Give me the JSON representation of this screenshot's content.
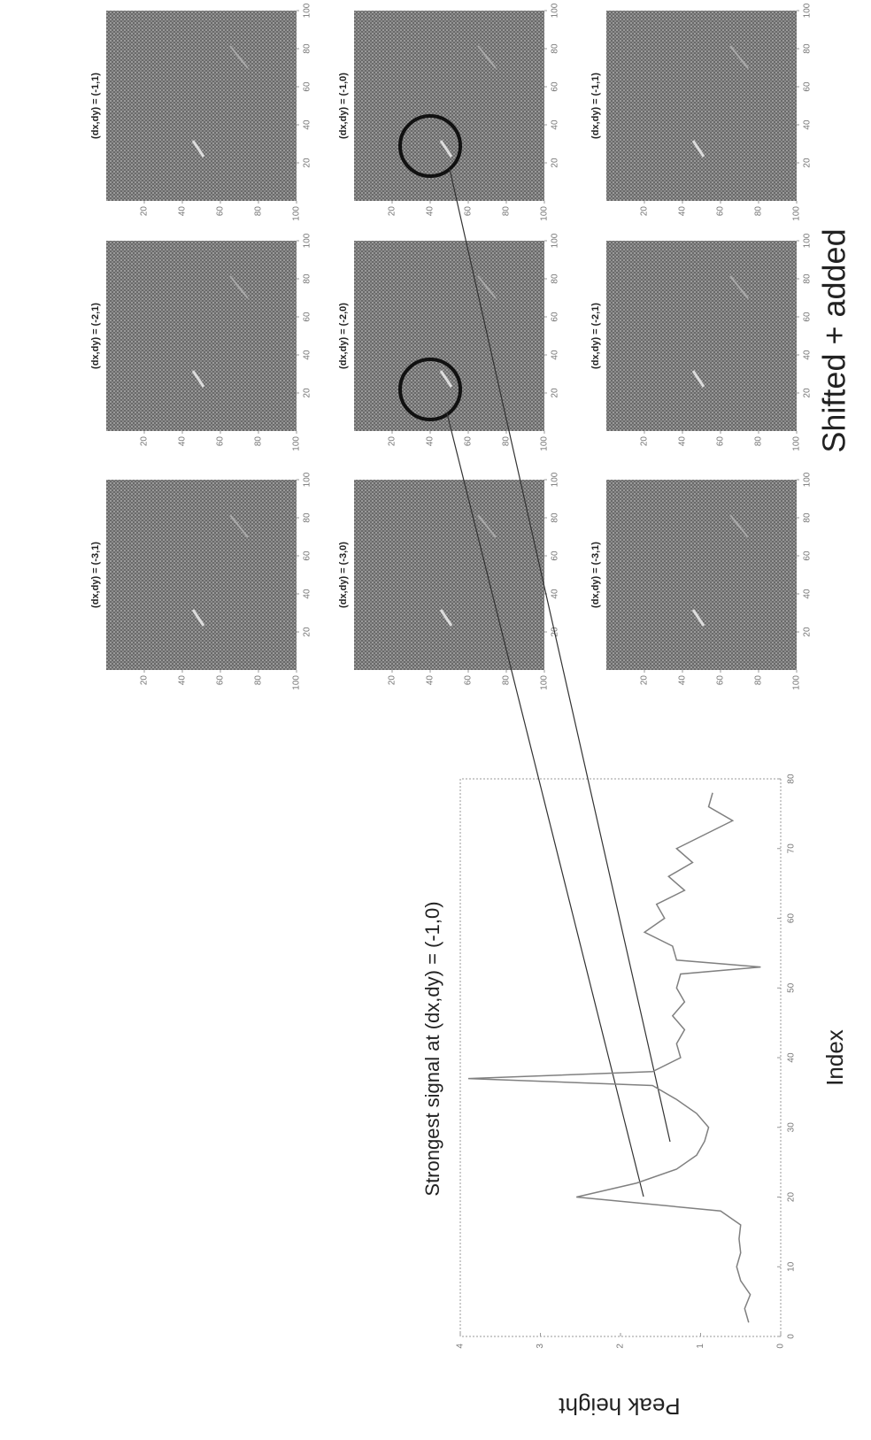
{
  "chart_data": [
    {
      "type": "line",
      "title": "Strongest signal at (dx,dy) = (-1,0)",
      "x_label": "Index",
      "y_label": "Peak height",
      "x": [
        2,
        4,
        6,
        8,
        10,
        12,
        14,
        16,
        18,
        20,
        22,
        24,
        26,
        28,
        30,
        32,
        34,
        36,
        37,
        38,
        40,
        42,
        44,
        46,
        48,
        50,
        52,
        53,
        54,
        56,
        58,
        60,
        62,
        64,
        66,
        68,
        70,
        72,
        74,
        76,
        78
      ],
      "series": [
        {
          "color": "#808080",
          "values": [
            0.4,
            0.45,
            0.38,
            0.5,
            0.55,
            0.5,
            0.52,
            0.5,
            0.75,
            2.55,
            1.8,
            1.3,
            1.05,
            0.95,
            0.9,
            1.05,
            1.3,
            1.6,
            3.9,
            1.6,
            1.25,
            1.3,
            1.2,
            1.35,
            1.2,
            1.3,
            1.25,
            0.25,
            1.3,
            1.35,
            1.7,
            1.45,
            1.55,
            1.2,
            1.4,
            1.1,
            1.3,
            0.95,
            0.6,
            0.9,
            0.85
          ]
        }
      ],
      "xlim": [
        0,
        80
      ],
      "xticks": [
        0,
        10,
        20,
        30,
        40,
        50,
        60,
        70,
        80
      ],
      "ylim": [
        0,
        4
      ],
      "yticks": [
        0,
        1,
        2,
        3,
        4
      ],
      "grid": false
    },
    {
      "type": "image_grid",
      "title": "Shifted + added",
      "panels": [
        {
          "title": "(dx,dy) = (-3,1)"
        },
        {
          "title": "(dx,dy) = (-2,1)"
        },
        {
          "title": "(dx,dy) = (-1,1)"
        },
        {
          "title": "(dx,dy) = (-3,0)"
        },
        {
          "title": "(dx,dy) = (-2,0)"
        },
        {
          "title": "(dx,dy) = (-1,0)"
        },
        {
          "title": "(dx,dy) = (-3,1)"
        },
        {
          "title": "(dx,dy) = (-2,1)"
        },
        {
          "title": "(dx,dy) = (-1,1)"
        }
      ],
      "xlim": [
        0,
        100
      ],
      "xticks": [
        20,
        40,
        60,
        80,
        100
      ],
      "ylim": [
        0,
        100
      ],
      "yticks": [
        20,
        40,
        60,
        80,
        100
      ]
    }
  ]
}
